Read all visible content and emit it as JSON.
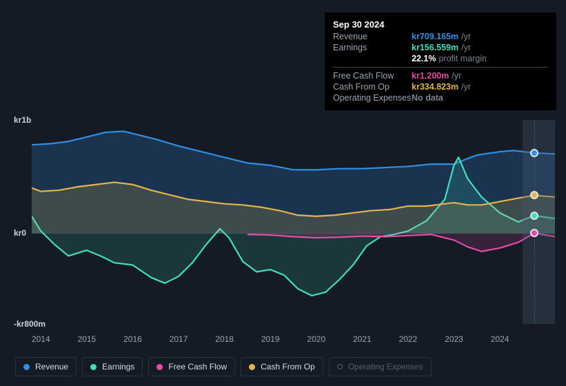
{
  "tooltip": {
    "date": "Sep 30 2024",
    "unit_suffix": "/yr",
    "rows": [
      {
        "key": "revenue",
        "label": "Revenue",
        "value": "kr709.165m",
        "color": "#2f8fe9"
      },
      {
        "key": "earnings",
        "label": "Earnings",
        "value": "kr156.559m",
        "color": "#3fe0c0"
      },
      {
        "key": "margin",
        "indent": true,
        "label": "",
        "value": "22.1%",
        "color": "#ffffff",
        "unit": "profit margin"
      },
      {
        "key": "separator",
        "separator": true
      },
      {
        "key": "fcf",
        "label": "Free Cash Flow",
        "value": "kr1.200m",
        "color": "#e84aa5"
      },
      {
        "key": "cfo",
        "label": "Cash From Op",
        "value": "kr334.823m",
        "color": "#e6b54a"
      },
      {
        "key": "opex",
        "label": "Operating Expenses",
        "value": "No data",
        "color": "#7b8594"
      }
    ]
  },
  "background_color": "#151b24",
  "y_axis": {
    "ticks": [
      {
        "label": "kr1b",
        "value": 1000
      },
      {
        "label": "kr0",
        "value": 0
      },
      {
        "label": "-kr800m",
        "value": -800
      }
    ],
    "min": -800,
    "max": 1000,
    "label_color": "#c9d3e0"
  },
  "x_axis": {
    "ticks": [
      "2014",
      "2015",
      "2016",
      "2017",
      "2018",
      "2019",
      "2020",
      "2021",
      "2022",
      "2023",
      "2024"
    ],
    "min": 2013.8,
    "max": 2025.2,
    "label_color": "#9aa5b4"
  },
  "highlight_band": {
    "from": 2024.5,
    "to": 2025.2,
    "color": "rgba(70,90,110,0.35)"
  },
  "vertical_marker": {
    "x": 2024.75,
    "color": "#4a5767"
  },
  "series": [
    {
      "id": "revenue",
      "name": "Revenue",
      "color": "#2f8fe9",
      "fill_opacity": 0.22,
      "line_width": 2.2,
      "points": [
        [
          2013.8,
          780
        ],
        [
          2014.2,
          790
        ],
        [
          2014.6,
          810
        ],
        [
          2015.0,
          850
        ],
        [
          2015.4,
          890
        ],
        [
          2015.8,
          900
        ],
        [
          2016.0,
          880
        ],
        [
          2016.5,
          830
        ],
        [
          2017.0,
          770
        ],
        [
          2017.5,
          720
        ],
        [
          2018.0,
          670
        ],
        [
          2018.5,
          620
        ],
        [
          2019.0,
          600
        ],
        [
          2019.5,
          560
        ],
        [
          2020.0,
          560
        ],
        [
          2020.5,
          570
        ],
        [
          2021.0,
          570
        ],
        [
          2021.5,
          580
        ],
        [
          2022.0,
          590
        ],
        [
          2022.5,
          610
        ],
        [
          2023.0,
          610
        ],
        [
          2023.3,
          660
        ],
        [
          2023.5,
          690
        ],
        [
          2024.0,
          720
        ],
        [
          2024.3,
          730
        ],
        [
          2024.75,
          709
        ],
        [
          2025.2,
          700
        ]
      ]
    },
    {
      "id": "earnings",
      "name": "Earnings",
      "color": "#3fe0c0",
      "fill_opacity": 0.14,
      "line_width": 2.2,
      "points": [
        [
          2013.8,
          150
        ],
        [
          2014.0,
          20
        ],
        [
          2014.3,
          -100
        ],
        [
          2014.6,
          -200
        ],
        [
          2015.0,
          -150
        ],
        [
          2015.3,
          -200
        ],
        [
          2015.6,
          -260
        ],
        [
          2016.0,
          -280
        ],
        [
          2016.4,
          -390
        ],
        [
          2016.7,
          -440
        ],
        [
          2017.0,
          -380
        ],
        [
          2017.3,
          -260
        ],
        [
          2017.6,
          -100
        ],
        [
          2017.9,
          40
        ],
        [
          2018.1,
          -40
        ],
        [
          2018.4,
          -250
        ],
        [
          2018.7,
          -340
        ],
        [
          2019.0,
          -320
        ],
        [
          2019.3,
          -370
        ],
        [
          2019.6,
          -490
        ],
        [
          2019.9,
          -550
        ],
        [
          2020.2,
          -520
        ],
        [
          2020.5,
          -410
        ],
        [
          2020.8,
          -280
        ],
        [
          2021.1,
          -110
        ],
        [
          2021.4,
          -30
        ],
        [
          2021.7,
          -10
        ],
        [
          2022.0,
          20
        ],
        [
          2022.4,
          110
        ],
        [
          2022.8,
          300
        ],
        [
          2023.0,
          600
        ],
        [
          2023.1,
          670
        ],
        [
          2023.3,
          480
        ],
        [
          2023.6,
          320
        ],
        [
          2024.0,
          180
        ],
        [
          2024.4,
          100
        ],
        [
          2024.75,
          157
        ],
        [
          2025.2,
          130
        ]
      ]
    },
    {
      "id": "fcf",
      "name": "Free Cash Flow",
      "color": "#e84aa5",
      "fill_opacity": 0.16,
      "line_width": 2.2,
      "points": [
        [
          2018.5,
          -10
        ],
        [
          2019.0,
          -15
        ],
        [
          2019.5,
          -30
        ],
        [
          2020.0,
          -40
        ],
        [
          2020.5,
          -35
        ],
        [
          2021.0,
          -25
        ],
        [
          2021.5,
          -30
        ],
        [
          2022.0,
          -20
        ],
        [
          2022.5,
          -10
        ],
        [
          2023.0,
          -60
        ],
        [
          2023.3,
          -120
        ],
        [
          2023.6,
          -160
        ],
        [
          2024.0,
          -130
        ],
        [
          2024.4,
          -80
        ],
        [
          2024.75,
          1
        ],
        [
          2025.2,
          -30
        ]
      ]
    },
    {
      "id": "cfo",
      "name": "Cash From Op",
      "color": "#e6b54a",
      "fill_opacity": 0.18,
      "line_width": 2.2,
      "points": [
        [
          2013.8,
          400
        ],
        [
          2014.0,
          370
        ],
        [
          2014.4,
          380
        ],
        [
          2014.8,
          410
        ],
        [
          2015.2,
          430
        ],
        [
          2015.6,
          450
        ],
        [
          2016.0,
          430
        ],
        [
          2016.4,
          380
        ],
        [
          2016.8,
          340
        ],
        [
          2017.2,
          300
        ],
        [
          2017.6,
          280
        ],
        [
          2018.0,
          260
        ],
        [
          2018.4,
          250
        ],
        [
          2018.8,
          230
        ],
        [
          2019.2,
          200
        ],
        [
          2019.6,
          160
        ],
        [
          2020.0,
          150
        ],
        [
          2020.4,
          160
        ],
        [
          2020.8,
          180
        ],
        [
          2021.2,
          200
        ],
        [
          2021.6,
          210
        ],
        [
          2022.0,
          240
        ],
        [
          2022.4,
          240
        ],
        [
          2022.8,
          260
        ],
        [
          2023.0,
          270
        ],
        [
          2023.3,
          250
        ],
        [
          2023.6,
          250
        ],
        [
          2024.0,
          280
        ],
        [
          2024.4,
          310
        ],
        [
          2024.75,
          335
        ],
        [
          2025.2,
          320
        ]
      ]
    }
  ],
  "legend": {
    "items": [
      {
        "id": "revenue",
        "label": "Revenue",
        "color": "#2f8fe9",
        "active": true
      },
      {
        "id": "earnings",
        "label": "Earnings",
        "color": "#3fe0c0",
        "active": true
      },
      {
        "id": "fcf",
        "label": "Free Cash Flow",
        "color": "#e84aa5",
        "active": true
      },
      {
        "id": "cfo",
        "label": "Cash From Op",
        "color": "#e6b54a",
        "active": true
      },
      {
        "id": "opex",
        "label": "Operating Expenses",
        "color": "#55606e",
        "active": false
      }
    ]
  },
  "end_markers": [
    {
      "series": "revenue",
      "color": "#2f8fe9"
    },
    {
      "series": "cfo",
      "color": "#e6b54a"
    },
    {
      "series": "fcf",
      "color": "#e84aa5"
    },
    {
      "series": "earnings",
      "color": "#3fe0c0"
    }
  ]
}
